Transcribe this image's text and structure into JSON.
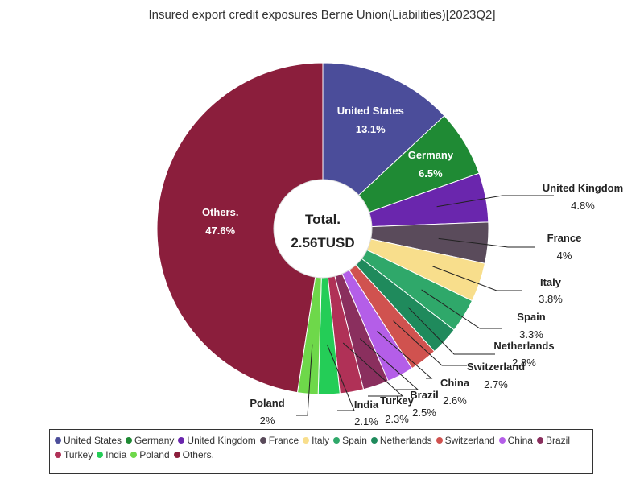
{
  "chart_data": {
    "type": "pie",
    "title": "Insured export credit exposures Berne Union(Liabilities)[2023Q2]",
    "center_label": [
      "Total.",
      "2.56TUSD"
    ],
    "legend_position": "bottom",
    "slices": [
      {
        "name": "United States",
        "value": 13.1,
        "label": "13.1%",
        "color": "#4b4d9a",
        "label_mode": "inside"
      },
      {
        "name": "Germany",
        "value": 6.5,
        "label": "6.5%",
        "color": "#1f8a34",
        "label_mode": "inside"
      },
      {
        "name": "United Kingdom",
        "value": 4.8,
        "label": "4.8%",
        "color": "#6a26ad",
        "label_mode": "outside"
      },
      {
        "name": "France",
        "value": 4.0,
        "label": "4%",
        "color": "#5a4b5b",
        "label_mode": "outside"
      },
      {
        "name": "Italy",
        "value": 3.8,
        "label": "3.8%",
        "color": "#f8de8c",
        "label_mode": "outside"
      },
      {
        "name": "Spain",
        "value": 3.3,
        "label": "3.3%",
        "color": "#2fa86a",
        "label_mode": "outside"
      },
      {
        "name": "Netherlands",
        "value": 2.8,
        "label": "2.8%",
        "color": "#1f8a5c",
        "label_mode": "outside"
      },
      {
        "name": "Switzerland",
        "value": 2.7,
        "label": "2.7%",
        "color": "#d0524f",
        "label_mode": "outside"
      },
      {
        "name": "China",
        "value": 2.6,
        "label": "2.6%",
        "color": "#b45ee8",
        "label_mode": "outside"
      },
      {
        "name": "Brazil",
        "value": 2.5,
        "label": "2.5%",
        "color": "#8a2f5e",
        "label_mode": "outside"
      },
      {
        "name": "Turkey",
        "value": 2.3,
        "label": "2.3%",
        "color": "#b03157",
        "label_mode": "outside"
      },
      {
        "name": "India",
        "value": 2.1,
        "label": "2.1%",
        "color": "#24cd57",
        "label_mode": "outside"
      },
      {
        "name": "Poland",
        "value": 2.0,
        "label": "2%",
        "color": "#6ed84a",
        "label_mode": "outside"
      },
      {
        "name": "Others.",
        "value": 47.6,
        "label": "47.6%",
        "color": "#8b1e3c",
        "label_mode": "inside"
      }
    ]
  }
}
